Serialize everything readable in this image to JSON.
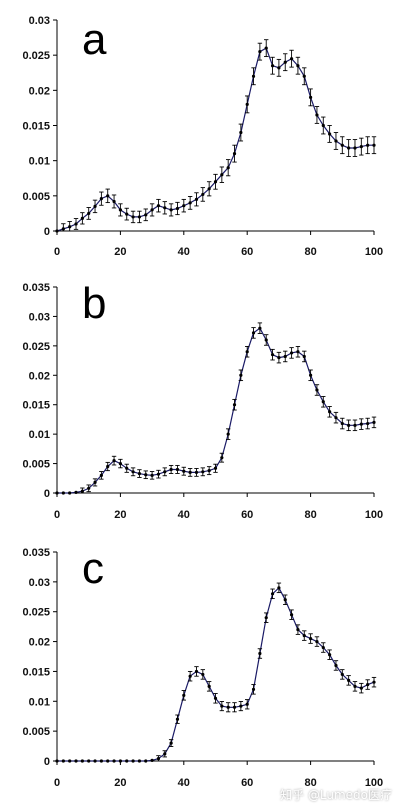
{
  "watermark": "知乎 @Lumedo医疗",
  "chart_data": [
    {
      "type": "line",
      "label": "a",
      "xlim": [
        0,
        100
      ],
      "ylim": [
        0,
        0.03
      ],
      "xticks": [
        0,
        20,
        40,
        60,
        80,
        100
      ],
      "yticks": [
        0,
        0.005,
        0.01,
        0.015,
        0.02,
        0.025,
        0.03
      ],
      "ytick_labels": [
        "0",
        "0.005",
        "0.01",
        "0.015",
        "0.02",
        "0.025",
        "0.03"
      ],
      "x": [
        0,
        2,
        4,
        6,
        8,
        10,
        12,
        14,
        16,
        18,
        20,
        22,
        24,
        26,
        28,
        30,
        32,
        34,
        36,
        38,
        40,
        42,
        44,
        46,
        48,
        50,
        52,
        54,
        56,
        58,
        60,
        62,
        64,
        66,
        68,
        70,
        72,
        74,
        76,
        78,
        80,
        82,
        84,
        86,
        88,
        90,
        92,
        94,
        96,
        98,
        100
      ],
      "y": [
        0,
        0.0003,
        0.0006,
        0.001,
        0.0018,
        0.0025,
        0.0035,
        0.0046,
        0.005,
        0.0042,
        0.003,
        0.0024,
        0.002,
        0.002,
        0.0023,
        0.003,
        0.0036,
        0.0033,
        0.003,
        0.0032,
        0.0036,
        0.004,
        0.0045,
        0.0052,
        0.006,
        0.007,
        0.008,
        0.009,
        0.011,
        0.014,
        0.018,
        0.022,
        0.0255,
        0.026,
        0.0235,
        0.0232,
        0.024,
        0.0245,
        0.0235,
        0.022,
        0.019,
        0.0165,
        0.015,
        0.0138,
        0.0128,
        0.0122,
        0.0118,
        0.0118,
        0.012,
        0.0122,
        0.0122
      ],
      "err": 0.0012
    },
    {
      "type": "line",
      "label": "b",
      "xlim": [
        0,
        100
      ],
      "ylim": [
        0,
        0.035
      ],
      "xticks": [
        0,
        20,
        40,
        60,
        80,
        100
      ],
      "yticks": [
        0,
        0.005,
        0.01,
        0.015,
        0.02,
        0.025,
        0.03,
        0.035
      ],
      "ytick_labels": [
        "0",
        "0.005",
        "0.01",
        "0.015",
        "0.02",
        "0.025",
        "0.03",
        "0.035"
      ],
      "x": [
        0,
        2,
        4,
        6,
        8,
        10,
        12,
        14,
        16,
        18,
        20,
        22,
        24,
        26,
        28,
        30,
        32,
        34,
        36,
        38,
        40,
        42,
        44,
        46,
        48,
        50,
        52,
        54,
        56,
        58,
        60,
        62,
        64,
        66,
        68,
        70,
        72,
        74,
        76,
        78,
        80,
        82,
        84,
        86,
        88,
        90,
        92,
        94,
        96,
        98,
        100
      ],
      "y": [
        0,
        0,
        0,
        0.0001,
        0.0003,
        0.0008,
        0.0018,
        0.003,
        0.0045,
        0.0055,
        0.005,
        0.0042,
        0.0036,
        0.0033,
        0.0031,
        0.003,
        0.0032,
        0.0036,
        0.004,
        0.004,
        0.0037,
        0.0035,
        0.0035,
        0.0036,
        0.0038,
        0.0042,
        0.006,
        0.01,
        0.015,
        0.02,
        0.024,
        0.0272,
        0.028,
        0.026,
        0.0235,
        0.023,
        0.0232,
        0.0238,
        0.024,
        0.0232,
        0.02,
        0.0175,
        0.0155,
        0.0138,
        0.0128,
        0.0118,
        0.0115,
        0.0115,
        0.0117,
        0.0118,
        0.012
      ],
      "err": 0.0009
    },
    {
      "type": "line",
      "label": "c",
      "xlim": [
        0,
        100
      ],
      "ylim": [
        0,
        0.035
      ],
      "xticks": [
        0,
        20,
        40,
        60,
        80,
        100
      ],
      "yticks": [
        0,
        0.005,
        0.01,
        0.015,
        0.02,
        0.025,
        0.03,
        0.035
      ],
      "ytick_labels": [
        "0",
        "0.005",
        "0.01",
        "0.015",
        "0.02",
        "0.025",
        "0.03",
        "0.035"
      ],
      "x": [
        0,
        2,
        4,
        6,
        8,
        10,
        12,
        14,
        16,
        18,
        20,
        22,
        24,
        26,
        28,
        30,
        32,
        34,
        36,
        38,
        40,
        42,
        44,
        46,
        48,
        50,
        52,
        54,
        56,
        58,
        60,
        62,
        64,
        66,
        68,
        70,
        72,
        74,
        76,
        78,
        80,
        82,
        84,
        86,
        88,
        90,
        92,
        94,
        96,
        98,
        100
      ],
      "y": [
        0,
        0,
        0,
        0,
        0,
        0,
        0,
        0,
        0,
        0,
        0,
        0,
        0,
        0,
        0,
        0.0001,
        0.0004,
        0.0012,
        0.003,
        0.007,
        0.011,
        0.0142,
        0.015,
        0.0145,
        0.0125,
        0.0105,
        0.0092,
        0.009,
        0.009,
        0.0092,
        0.0095,
        0.012,
        0.018,
        0.024,
        0.028,
        0.029,
        0.027,
        0.0245,
        0.022,
        0.021,
        0.0205,
        0.02,
        0.019,
        0.0178,
        0.016,
        0.0145,
        0.0135,
        0.0125,
        0.0122,
        0.0128,
        0.0132
      ],
      "err": 0.0008
    }
  ]
}
